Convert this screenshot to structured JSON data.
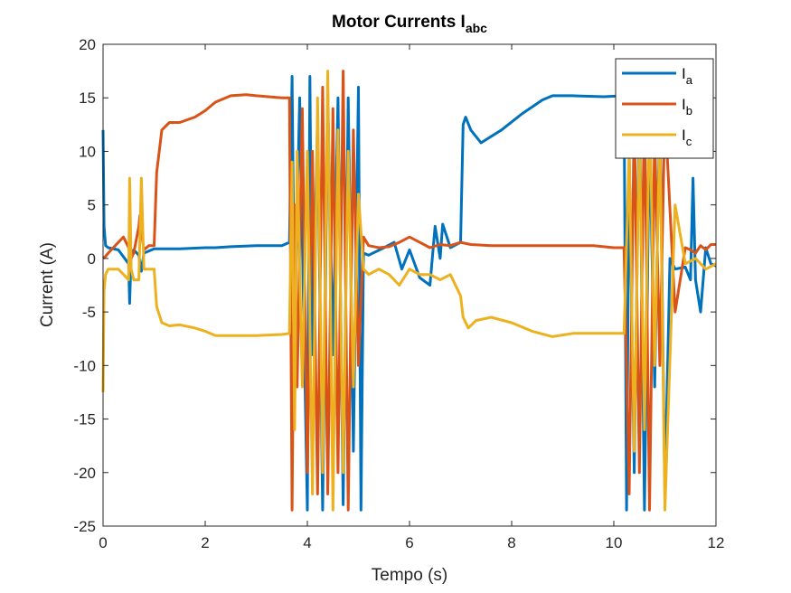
{
  "chart_data": {
    "type": "line",
    "title": "Motor Currents I",
    "title_subscript": "abc",
    "xlabel": "Tempo (s)",
    "ylabel": "Current (A)",
    "xlim": [
      0,
      12
    ],
    "ylim": [
      -25,
      20
    ],
    "xticks": [
      0,
      2,
      4,
      6,
      8,
      10,
      12
    ],
    "yticks": [
      -25,
      -20,
      -15,
      -10,
      -5,
      0,
      5,
      10,
      15,
      20
    ],
    "grid": false,
    "legend_position": "top-right",
    "series": [
      {
        "name": "I",
        "subscript": "a",
        "color": "#0072BD",
        "x": [
          0,
          0.02,
          0.05,
          0.1,
          0.3,
          0.5,
          0.52,
          0.55,
          0.6,
          0.7,
          0.75,
          0.8,
          1.0,
          1.2,
          1.5,
          2.0,
          2.2,
          2.5,
          3.0,
          3.5,
          3.65,
          3.7,
          3.75,
          3.85,
          4.0,
          4.05,
          4.1,
          4.2,
          4.3,
          4.4,
          4.5,
          4.6,
          4.7,
          4.8,
          4.9,
          5.0,
          5.05,
          5.1,
          5.2,
          5.5,
          5.7,
          5.85,
          6.0,
          6.2,
          6.4,
          6.5,
          6.6,
          6.65,
          6.8,
          7.0,
          7.05,
          7.1,
          7.2,
          7.4,
          7.8,
          8.2,
          8.6,
          8.8,
          9.2,
          9.8,
          10.2,
          10.25,
          10.3,
          10.4,
          10.5,
          10.6,
          10.7,
          10.8,
          10.9,
          11.0,
          11.1,
          11.2,
          11.4,
          11.5,
          11.55,
          11.6,
          11.7,
          11.8,
          11.9,
          12.0
        ],
        "values": [
          12,
          3,
          1.2,
          1,
          0.8,
          -0.5,
          -4.2,
          0.5,
          0.8,
          0.3,
          -1.2,
          0.5,
          0.9,
          0.9,
          0.9,
          1.0,
          1.0,
          1.1,
          1.2,
          1.2,
          1.5,
          17,
          -7,
          15,
          -23.5,
          17,
          -9,
          13,
          -23.5,
          15,
          -9,
          15,
          -23,
          15,
          -18,
          16,
          -23.5,
          0.5,
          0.3,
          1.0,
          1.5,
          -1,
          0.8,
          -1.8,
          -2.5,
          3,
          0,
          3.2,
          1,
          1.5,
          12.5,
          13.2,
          12,
          10.8,
          12,
          13.5,
          14.8,
          15.2,
          15.2,
          15.1,
          15.2,
          -23.5,
          10,
          -20,
          15,
          -23.5,
          12,
          -12,
          14,
          -22,
          0,
          -1,
          -0.8,
          -2,
          7.5,
          -2,
          -5,
          1,
          -0.5,
          -0.7
        ]
      },
      {
        "name": "I",
        "subscript": "b",
        "color": "#D95319",
        "x": [
          0,
          0.05,
          0.1,
          0.2,
          0.3,
          0.4,
          0.5,
          0.55,
          0.6,
          0.7,
          0.72,
          0.75,
          0.8,
          0.9,
          1.0,
          1.05,
          1.15,
          1.3,
          1.5,
          1.8,
          2.0,
          2.2,
          2.5,
          2.8,
          3.0,
          3.5,
          3.65,
          3.7,
          3.75,
          3.8,
          3.9,
          4.0,
          4.1,
          4.2,
          4.3,
          4.4,
          4.5,
          4.6,
          4.7,
          4.8,
          4.9,
          5.0,
          5.1,
          5.2,
          5.4,
          5.6,
          5.8,
          6.0,
          6.2,
          6.4,
          6.6,
          6.8,
          7.0,
          7.2,
          7.6,
          8.0,
          8.4,
          8.8,
          9.2,
          9.6,
          10.0,
          10.2,
          10.3,
          10.4,
          10.5,
          10.6,
          10.7,
          10.8,
          10.9,
          11.0,
          11.2,
          11.4,
          11.5,
          11.6,
          11.7,
          11.8,
          11.9,
          12.0
        ],
        "values": [
          0,
          0.2,
          0.5,
          1.0,
          1.5,
          2.0,
          1.0,
          0,
          0.5,
          3.0,
          4.0,
          2.5,
          0.8,
          1.2,
          1.2,
          8.0,
          12.0,
          12.7,
          12.7,
          13.2,
          13.8,
          14.6,
          15.2,
          15.3,
          15.2,
          15.0,
          15.0,
          -23.5,
          5.0,
          -12.0,
          14.0,
          -20.0,
          10.0,
          -22.0,
          16.0,
          -22.0,
          14.0,
          -20.0,
          17.5,
          -23.5,
          12.0,
          -10.0,
          2.0,
          1.2,
          1.0,
          1.1,
          1.5,
          2.0,
          1.5,
          1.0,
          1.3,
          1.2,
          1.5,
          1.3,
          1.2,
          1.2,
          1.2,
          1.2,
          1.2,
          1.2,
          1.0,
          1.0,
          -22.0,
          14.0,
          -20.0,
          15.0,
          -23.5,
          12.0,
          -10.0,
          14.0,
          -5.0,
          1.0,
          0.8,
          0.5,
          1.2,
          0.8,
          1.3,
          1.3
        ]
      },
      {
        "name": "I",
        "subscript": "c",
        "color": "#EDB120",
        "x": [
          0,
          0.02,
          0.05,
          0.1,
          0.3,
          0.5,
          0.52,
          0.55,
          0.6,
          0.7,
          0.75,
          0.8,
          1.0,
          1.05,
          1.15,
          1.3,
          1.5,
          1.8,
          2.0,
          2.2,
          2.5,
          3.0,
          3.5,
          3.65,
          3.7,
          3.75,
          3.8,
          3.9,
          4.0,
          4.1,
          4.2,
          4.3,
          4.4,
          4.5,
          4.6,
          4.7,
          4.8,
          4.9,
          5.0,
          5.1,
          5.2,
          5.4,
          5.6,
          5.8,
          6.0,
          6.2,
          6.4,
          6.6,
          6.8,
          7.0,
          7.05,
          7.15,
          7.3,
          7.6,
          8.0,
          8.4,
          8.8,
          9.2,
          9.6,
          10.0,
          10.2,
          10.3,
          10.4,
          10.5,
          10.6,
          10.7,
          10.8,
          10.9,
          11.0,
          11.2,
          11.4,
          11.6,
          11.8,
          12.0
        ],
        "values": [
          -12.5,
          -3,
          -1.5,
          -1,
          -1,
          -2,
          7.5,
          -1,
          -2,
          -2,
          7.5,
          -1,
          -1,
          -4.5,
          -6.0,
          -6.3,
          -6.2,
          -6.5,
          -6.8,
          -7.2,
          -7.2,
          -7.2,
          -7.1,
          -7.0,
          9.0,
          -16.0,
          10.0,
          -12.0,
          10.0,
          -22.0,
          15.0,
          -20.0,
          17.5,
          -23.5,
          12.0,
          -20.0,
          10.0,
          -12.0,
          6.0,
          -1.0,
          -1.5,
          -1.0,
          -1.5,
          -2.5,
          -1.0,
          -1.5,
          -1.5,
          -2.0,
          -1.5,
          -3.5,
          -5.5,
          -6.5,
          -5.8,
          -5.5,
          -6.0,
          -6.8,
          -7.3,
          -7.0,
          -7.0,
          -7.0,
          -7.0,
          10.0,
          -18.0,
          12.0,
          -16.0,
          15.0,
          -10.0,
          12.0,
          -23.5,
          5.0,
          -0.5,
          0.0,
          -1.0,
          -0.5
        ]
      }
    ]
  }
}
